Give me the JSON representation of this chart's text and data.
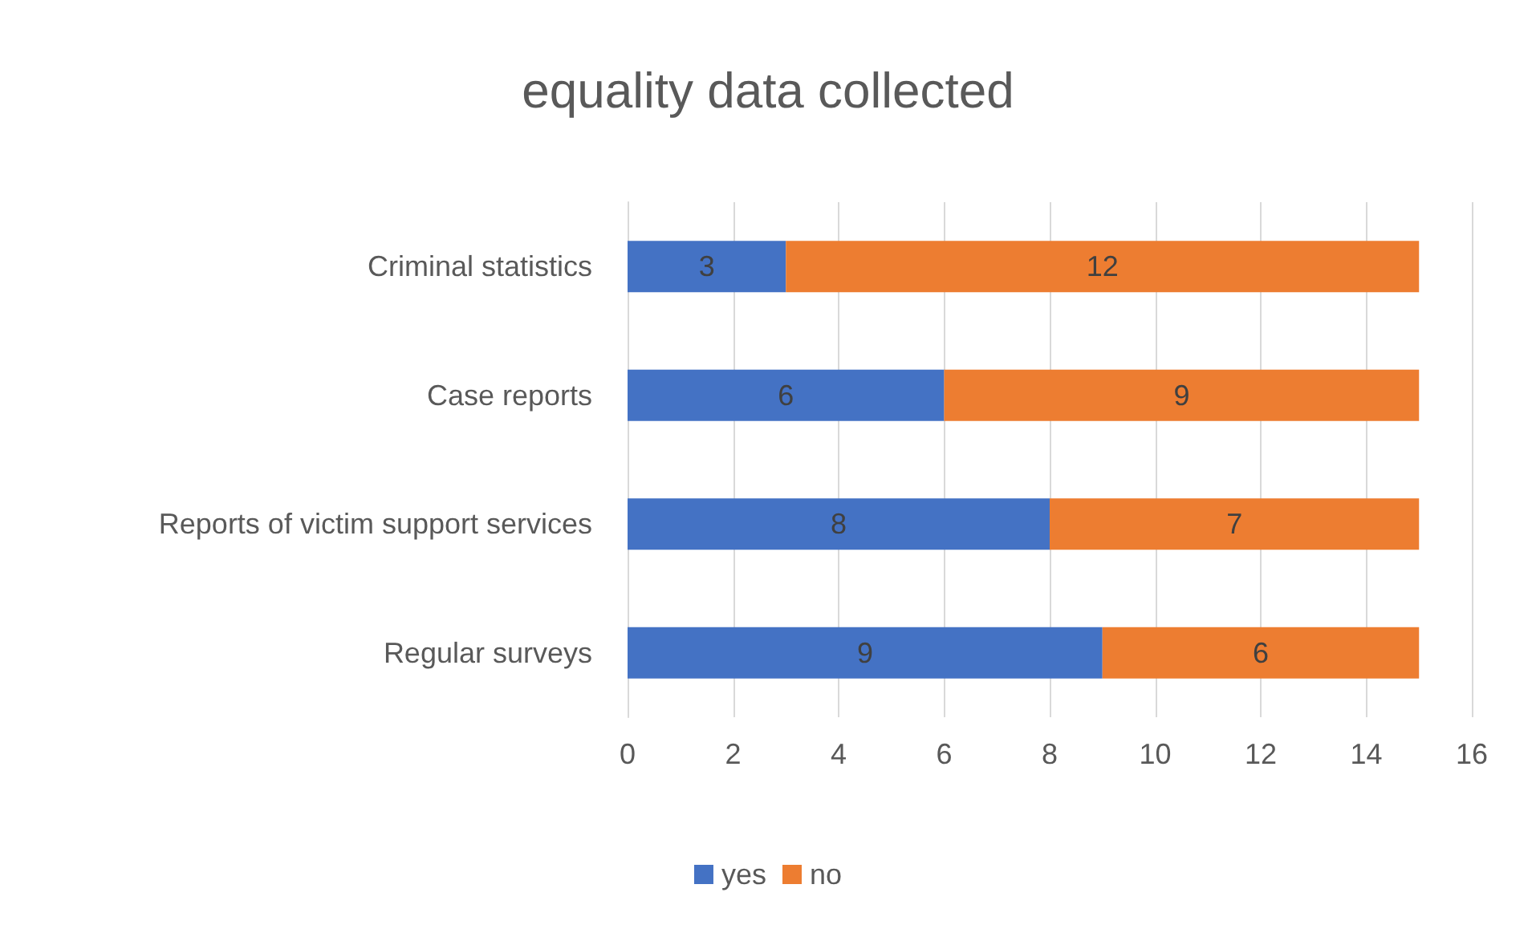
{
  "chart_data": {
    "type": "bar",
    "orientation": "horizontal",
    "stacked": true,
    "title": "equality data collected",
    "categories": [
      "Criminal statistics",
      "Case reports",
      "Reports of victim support services",
      "Regular surveys"
    ],
    "series": [
      {
        "name": "yes",
        "color": "#4472c4",
        "values": [
          3,
          6,
          8,
          9
        ]
      },
      {
        "name": "no",
        "color": "#ed7d31",
        "values": [
          12,
          9,
          7,
          6
        ]
      }
    ],
    "xlim": [
      0,
      16
    ],
    "xticks": [
      0,
      2,
      4,
      6,
      8,
      10,
      12,
      14,
      16
    ],
    "grid": "x",
    "legend": "bottom",
    "data_labels": true
  }
}
